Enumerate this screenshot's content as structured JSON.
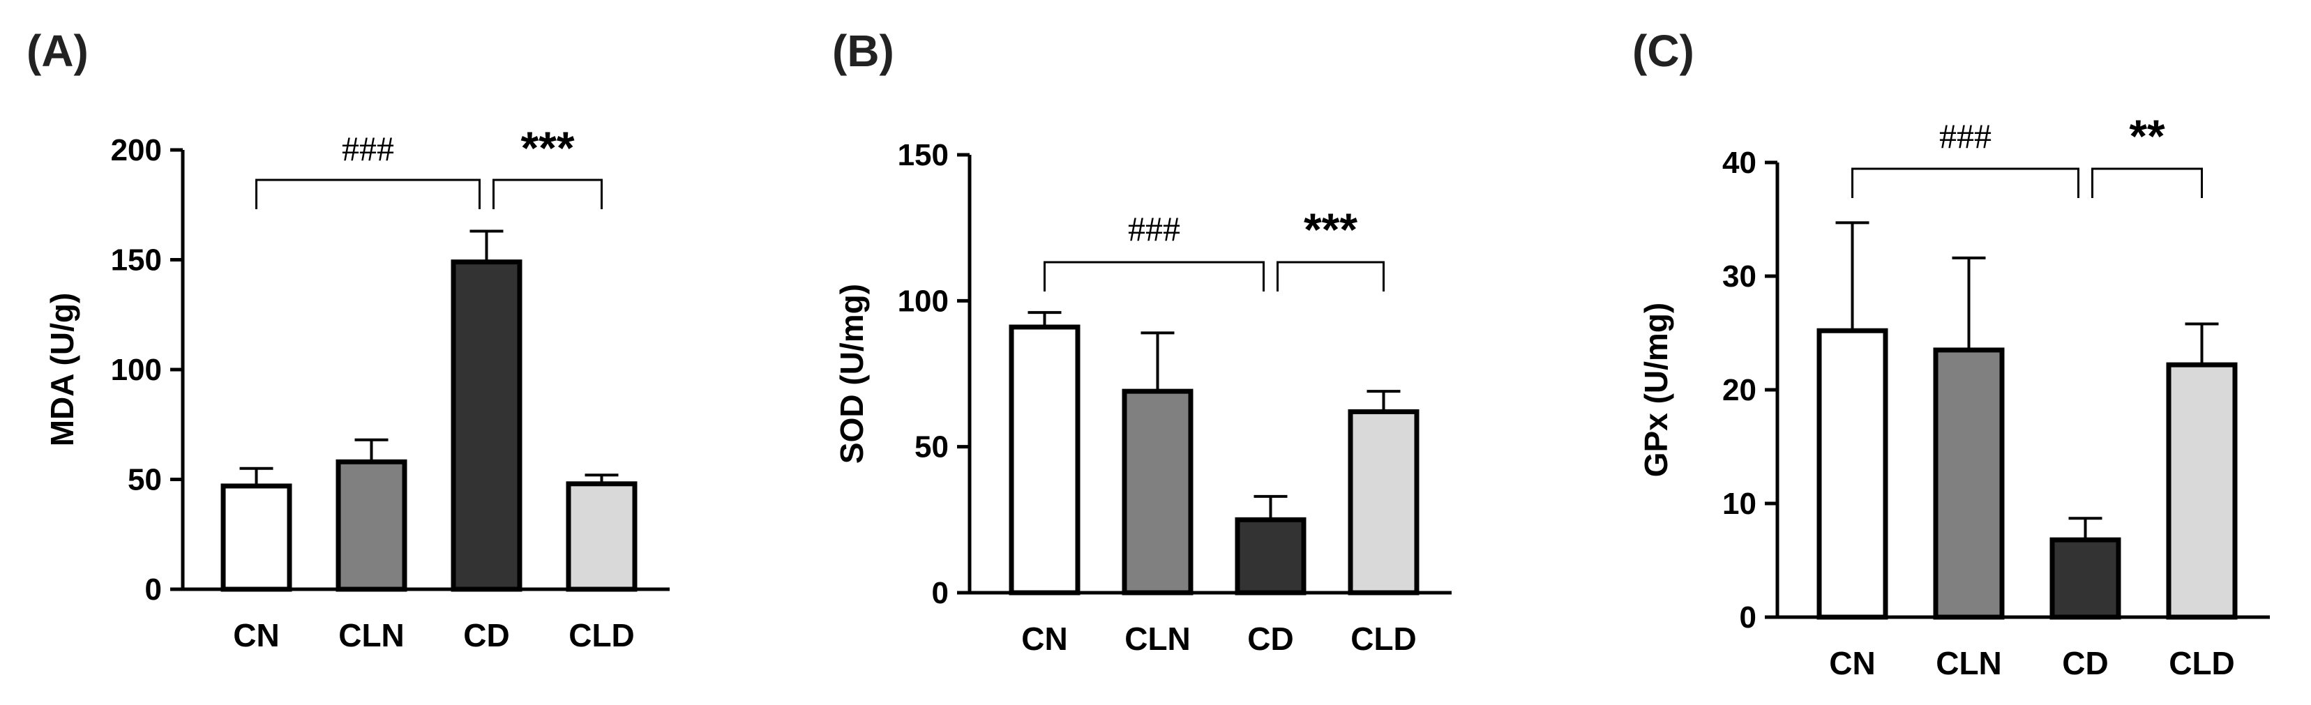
{
  "chart_data": [
    {
      "type": "bar",
      "panel_label": "(A)",
      "categories": [
        "CN",
        "CLN",
        "CD",
        "CLD"
      ],
      "values": [
        47,
        58,
        149,
        48
      ],
      "errors": [
        8,
        10,
        14,
        4
      ],
      "bar_colors": [
        "#ffffff",
        "#808080",
        "#333333",
        "#d9d9d9"
      ],
      "ylabel": "MDA (U/g)",
      "ylim": [
        0,
        200
      ],
      "yticks": [
        0,
        50,
        100,
        150,
        200
      ],
      "annotations": [
        {
          "from": 0,
          "to": 2,
          "label": "###",
          "style": "hash"
        },
        {
          "from": 2,
          "to": 3,
          "label": "***",
          "style": "star"
        }
      ]
    },
    {
      "type": "bar",
      "panel_label": "(B)",
      "categories": [
        "CN",
        "CLN",
        "CD",
        "CLD"
      ],
      "values": [
        91,
        69,
        25,
        62
      ],
      "errors": [
        5,
        20,
        8,
        7
      ],
      "bar_colors": [
        "#ffffff",
        "#808080",
        "#333333",
        "#d9d9d9"
      ],
      "ylabel": "SOD (U/mg)",
      "ylim": [
        0,
        150
      ],
      "yticks": [
        0,
        50,
        100,
        150
      ],
      "annotations": [
        {
          "from": 0,
          "to": 2,
          "label": "###",
          "style": "hash"
        },
        {
          "from": 2,
          "to": 3,
          "label": "***",
          "style": "star"
        }
      ]
    },
    {
      "type": "bar",
      "panel_label": "(C)",
      "categories": [
        "CN",
        "CLN",
        "CD",
        "CLD"
      ],
      "values": [
        25.2,
        23.5,
        6.8,
        22.2
      ],
      "errors": [
        9.5,
        8.1,
        1.9,
        3.6
      ],
      "bar_colors": [
        "#ffffff",
        "#808080",
        "#333333",
        "#d9d9d9"
      ],
      "ylabel": "GPx (U/mg)",
      "ylim": [
        0,
        40
      ],
      "yticks": [
        0,
        10,
        20,
        30,
        40
      ],
      "annotations": [
        {
          "from": 0,
          "to": 2,
          "label": "###",
          "style": "hash"
        },
        {
          "from": 2,
          "to": 3,
          "label": "**",
          "style": "star"
        }
      ]
    }
  ]
}
